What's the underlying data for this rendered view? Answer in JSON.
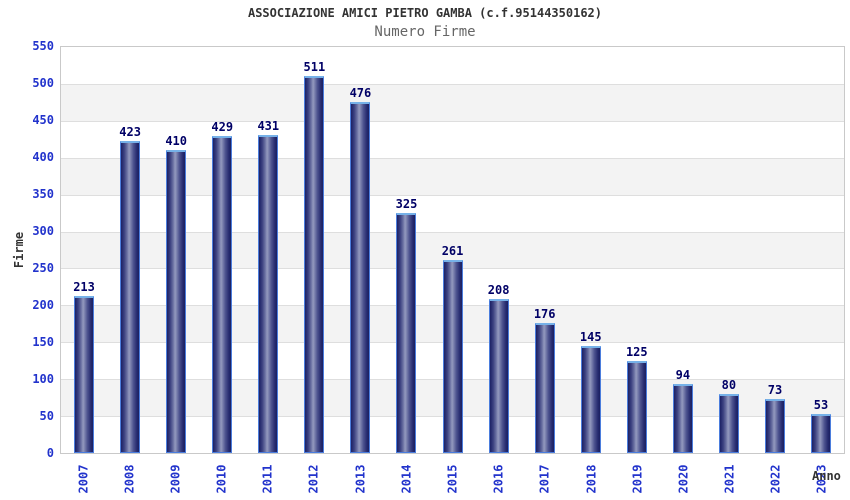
{
  "chart_data": {
    "type": "bar",
    "title": "ASSOCIAZIONE AMICI PIETRO GAMBA (c.f.95144350162)",
    "subtitle": "Numero Firme",
    "xlabel": "Anno",
    "ylabel": "Firme",
    "categories": [
      "2007",
      "2008",
      "2009",
      "2010",
      "2011",
      "2012",
      "2013",
      "2014",
      "2015",
      "2016",
      "2017",
      "2018",
      "2019",
      "2020",
      "2021",
      "2022",
      "2023"
    ],
    "values": [
      213,
      423,
      410,
      429,
      431,
      511,
      476,
      325,
      261,
      208,
      176,
      145,
      125,
      94,
      80,
      73,
      53
    ],
    "ylim": [
      0,
      550
    ],
    "ytick_step": 50,
    "grid": "horizontal-alternating-bands",
    "legend": "none"
  },
  "colors": {
    "axis_label_blue": "#2233cc",
    "value_label_navy": "#000066",
    "bar_border": "#4b7ddd",
    "bar_cap": "#76b1e8",
    "bar_dark": "#1d2264",
    "bar_light": "#9399be",
    "band_gray": "#f3f3f3",
    "gridline": "#dedede",
    "plot_border": "#c9c9c9",
    "title_color": "#333333",
    "subtitle_color": "#666666"
  }
}
